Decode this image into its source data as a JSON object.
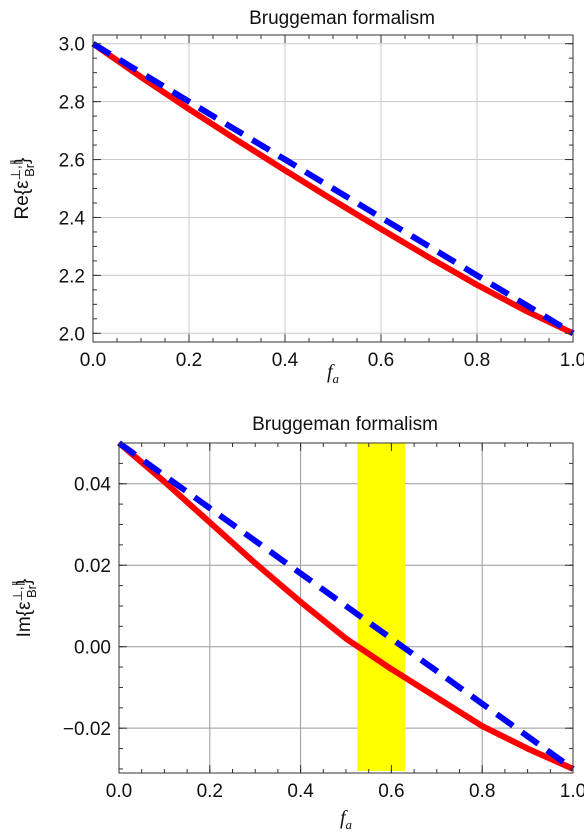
{
  "chart_data": [
    {
      "type": "line",
      "title": "Bruggeman formalism",
      "xlabel": "f",
      "xlabel_sub": "a",
      "ylabel_prefix": "Re{ε",
      "ylabel_sup": "⊥,∥",
      "ylabel_sub": "Br",
      "ylabel_suffix": "}",
      "xlim": [
        0,
        1
      ],
      "ylim": [
        1.97,
        3.03
      ],
      "xticks": [
        0.0,
        0.2,
        0.4,
        0.6,
        0.8,
        1.0
      ],
      "xtick_labels": [
        "0.0",
        "0.2",
        "0.4",
        "0.6",
        "0.8",
        "1.0"
      ],
      "yticks": [
        2.0,
        2.2,
        2.4,
        2.6,
        2.8,
        3.0
      ],
      "ytick_labels": [
        "2.0",
        "2.2",
        "2.4",
        "2.6",
        "2.8",
        "3.0"
      ],
      "grid": true,
      "series": [
        {
          "style": "solid",
          "color": "#ff0000",
          "x": [
            0,
            0.1,
            0.2,
            0.3,
            0.4,
            0.5,
            0.6,
            0.7,
            0.8,
            0.9,
            1.0
          ],
          "y": [
            3.0,
            2.885,
            2.774,
            2.667,
            2.563,
            2.46,
            2.36,
            2.262,
            2.167,
            2.079,
            2.0
          ]
        },
        {
          "style": "dashed",
          "color": "#0000ff",
          "x": [
            0,
            0.1,
            0.2,
            0.3,
            0.4,
            0.5,
            0.6,
            0.7,
            0.8,
            0.9,
            1.0
          ],
          "y": [
            3.0,
            2.9,
            2.8,
            2.7,
            2.6,
            2.5,
            2.4,
            2.3,
            2.2,
            2.1,
            2.0
          ]
        }
      ]
    },
    {
      "type": "line",
      "title": "Bruggeman formalism",
      "xlabel": "f",
      "xlabel_sub": "a",
      "ylabel_prefix": "Im{ε",
      "ylabel_sup": "⊥,∥",
      "ylabel_sub": "Br",
      "ylabel_suffix": "}",
      "xlim": [
        0,
        1
      ],
      "ylim": [
        -0.031,
        0.05
      ],
      "xticks": [
        0.0,
        0.2,
        0.4,
        0.6,
        0.8,
        1.0
      ],
      "xtick_labels": [
        "0.0",
        "0.2",
        "0.4",
        "0.6",
        "0.8",
        "1.0"
      ],
      "yticks": [
        -0.02,
        0.0,
        0.02,
        0.04
      ],
      "ytick_labels": [
        "−0.02",
        "0.00",
        "0.02",
        "0.04"
      ],
      "grid": true,
      "highlight_band": {
        "x_start": 0.525,
        "x_end": 0.63,
        "y_start": -0.0305,
        "y_end": 0.05,
        "color": "#ffff00"
      },
      "series": [
        {
          "style": "solid",
          "color": "#ff0000",
          "x": [
            0,
            0.1,
            0.2,
            0.3,
            0.4,
            0.5,
            0.6,
            0.7,
            0.8,
            0.9,
            1.0
          ],
          "y": [
            0.05,
            0.0405,
            0.0305,
            0.0205,
            0.011,
            0.002,
            -0.0055,
            -0.0125,
            -0.0195,
            -0.025,
            -0.03
          ]
        },
        {
          "style": "dashed",
          "color": "#0000ff",
          "x": [
            0,
            0.1,
            0.2,
            0.3,
            0.4,
            0.5,
            0.6,
            0.7,
            0.8,
            0.9,
            1.0
          ],
          "y": [
            0.05,
            0.042,
            0.034,
            0.026,
            0.018,
            0.01,
            0.002,
            -0.006,
            -0.014,
            -0.022,
            -0.03
          ]
        }
      ]
    }
  ]
}
